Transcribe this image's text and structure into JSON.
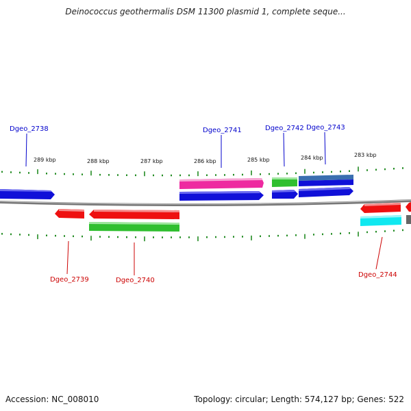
{
  "title": "Deinococcus geothermalis DSM 11300 plasmid 1, complete seque...",
  "footer": {
    "accession": "Accession: NC_008010",
    "summary": "Topology: circular; Length: 574,127 bp; Genes: 522"
  },
  "colors": {
    "label_plus": "#0000cc",
    "label_minus": "#cc0000",
    "backbone": "#888888",
    "tick": "#228b22",
    "blue": "#1010d8",
    "red": "#ee1010",
    "green": "#2fbf2f",
    "magenta": "#ee2aa0",
    "steelblue": "#3a6fb0",
    "cyan": "#10e8f0"
  },
  "kbp_labels": [
    "289 kbp",
    "288 kbp",
    "287 kbp",
    "286 kbp",
    "285 kbp",
    "284 kbp",
    "283 kbp"
  ],
  "genes_plus": [
    {
      "label": "Dgeo_2738"
    },
    {
      "label": "Dgeo_2741"
    },
    {
      "label": "Dgeo_2742"
    },
    {
      "label": "Dgeo_2743"
    }
  ],
  "genes_minus": [
    {
      "label": "Dgeo_2739"
    },
    {
      "label": "Dgeo_2740"
    },
    {
      "label": "Dgeo_2744"
    }
  ]
}
